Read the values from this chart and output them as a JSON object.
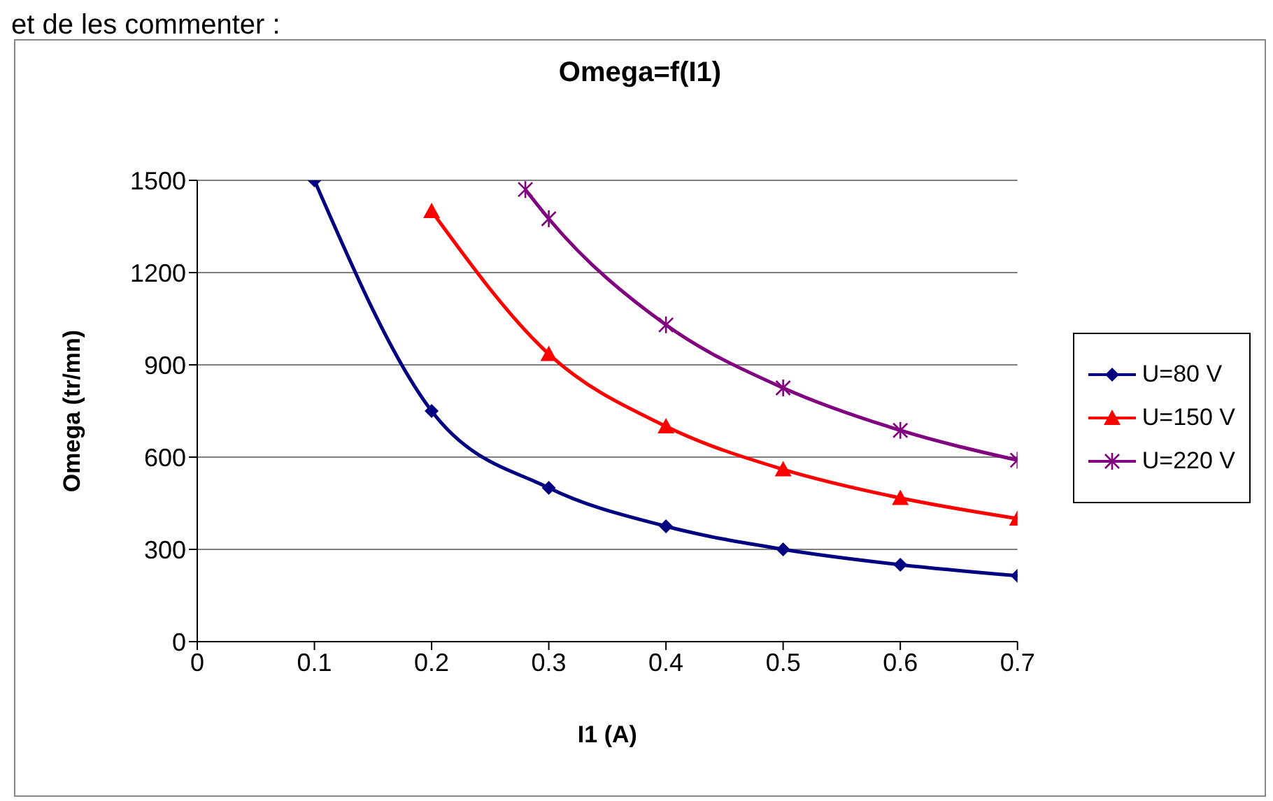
{
  "chart_data": {
    "type": "line",
    "title": "Omega=f(I1)",
    "xlabel": "I1 (A)",
    "ylabel": "Omega (tr/mn)",
    "annotations": [
      "et de les commenter :"
    ],
    "xlim": [
      0,
      0.7
    ],
    "xticks": [
      0,
      0.1,
      0.2,
      0.3,
      0.4,
      0.5,
      0.6,
      0.7
    ],
    "ylim": [
      0,
      1500
    ],
    "yticks": [
      0,
      300,
      600,
      900,
      1200,
      1500
    ],
    "grid": "y",
    "legend": "right",
    "line_style": "solid",
    "series": [
      {
        "name": "U=80 V",
        "color": "#000080",
        "marker": "diamond",
        "x": [
          0.1,
          0.2,
          0.3,
          0.4,
          0.5,
          0.6,
          0.7
        ],
        "values": [
          1500,
          750,
          500,
          375,
          300,
          250,
          214
        ]
      },
      {
        "name": "U=150 V",
        "color": "#ff0000",
        "marker": "triangle",
        "x": [
          0.2,
          0.3,
          0.4,
          0.5,
          0.6,
          0.7
        ],
        "values": [
          1400,
          935,
          700,
          560,
          467,
          400
        ]
      },
      {
        "name": "U=220 V",
        "color": "#800080",
        "marker": "cross",
        "x": [
          0.28,
          0.3,
          0.4,
          0.5,
          0.6,
          0.7
        ],
        "values": [
          1470,
          1375,
          1030,
          825,
          687,
          590
        ]
      }
    ]
  }
}
